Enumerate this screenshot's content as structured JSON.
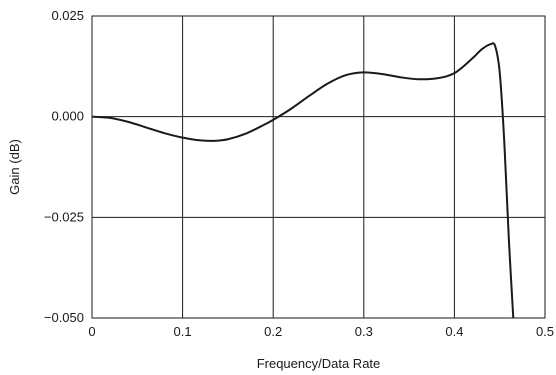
{
  "chart_data": {
    "type": "line",
    "title": "",
    "xlabel": "Frequency/Data Rate",
    "ylabel": "Gain (dB)",
    "xlim": [
      0,
      0.5
    ],
    "ylim": [
      -0.05,
      0.025
    ],
    "x_ticks": [
      0,
      0.1,
      0.2,
      0.3,
      0.4,
      0.5
    ],
    "x_tick_labels": [
      "0",
      "0.1",
      "0.2",
      "0.3",
      "0.4",
      "0.5"
    ],
    "y_ticks": [
      0.025,
      0.0,
      -0.025,
      -0.05
    ],
    "y_tick_labels": [
      "0.025",
      "0.000",
      "−0.025",
      "−0.050"
    ],
    "grid": true,
    "line_color": "#1a1a1a",
    "series": [
      {
        "x": [
          0,
          0.02,
          0.04,
          0.06,
          0.08,
          0.1,
          0.12,
          0.135,
          0.15,
          0.17,
          0.19,
          0.2,
          0.22,
          0.24,
          0.26,
          0.28,
          0.3,
          0.32,
          0.34,
          0.36,
          0.38,
          0.4,
          0.42,
          0.43,
          0.44,
          0.445,
          0.45,
          0.455,
          0.46,
          0.465
        ],
        "y": [
          0.0,
          -0.0003,
          -0.0013,
          -0.0027,
          -0.0041,
          -0.0052,
          -0.0059,
          -0.006,
          -0.0056,
          -0.0042,
          -0.002,
          -0.0008,
          0.002,
          0.0052,
          0.0082,
          0.0103,
          0.011,
          0.0106,
          0.0098,
          0.0093,
          0.0095,
          0.0108,
          0.0145,
          0.0167,
          0.018,
          0.0175,
          0.011,
          -0.006,
          -0.03,
          -0.05
        ]
      }
    ]
  }
}
